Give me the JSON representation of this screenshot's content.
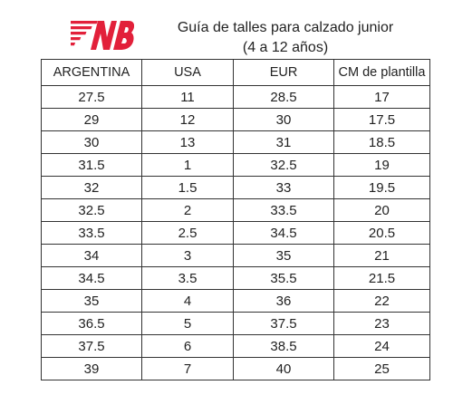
{
  "logo": {
    "icon": "new-balance-logo",
    "color": "#e2203a"
  },
  "header": {
    "title_line1": "Guía de talles para calzado junior",
    "title_line2": "(4 a 12 años)"
  },
  "table": {
    "columns": [
      "ARGENTINA",
      "USA",
      "EUR",
      "CM de plantilla"
    ],
    "rows": [
      [
        "27.5",
        "11",
        "28.5",
        "17"
      ],
      [
        "29",
        "12",
        "30",
        "17.5"
      ],
      [
        "30",
        "13",
        "31",
        "18.5"
      ],
      [
        "31.5",
        "1",
        "32.5",
        "19"
      ],
      [
        "32",
        "1.5",
        "33",
        "19.5"
      ],
      [
        "32.5",
        "2",
        "33.5",
        "20"
      ],
      [
        "33.5",
        "2.5",
        "34.5",
        "20.5"
      ],
      [
        "34",
        "3",
        "35",
        "21"
      ],
      [
        "34.5",
        "3.5",
        "35.5",
        "21.5"
      ],
      [
        "35",
        "4",
        "36",
        "22"
      ],
      [
        "36.5",
        "5",
        "37.5",
        "23"
      ],
      [
        "37.5",
        "6",
        "38.5",
        "24"
      ],
      [
        "39",
        "7",
        "40",
        "25"
      ]
    ]
  }
}
